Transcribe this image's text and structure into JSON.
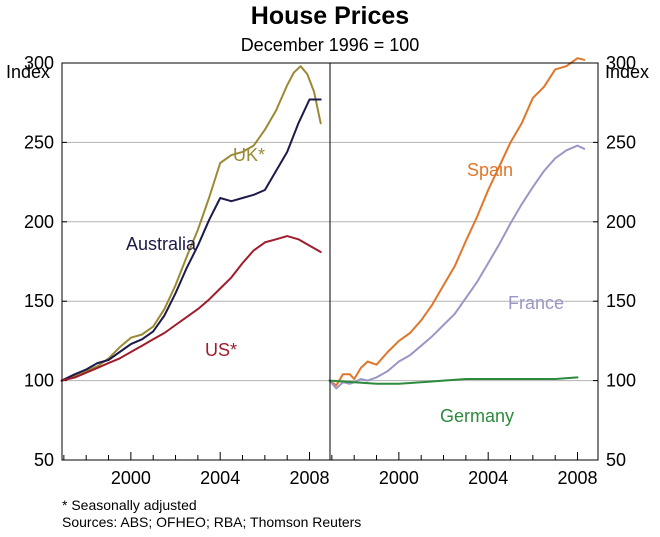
{
  "title": "House Prices",
  "subtitle": "December 1996 = 100",
  "y_unit_left": "Index",
  "y_unit_right": "Index",
  "footnote": "*  Seasonally adjusted",
  "sources": "Sources: ABS; OFHEO; RBA; Thomson Reuters",
  "chart_data": [
    {
      "type": "line",
      "panel": "left",
      "ylim": [
        50,
        300
      ],
      "yticks": [
        50,
        100,
        150,
        200,
        250,
        300
      ],
      "xlim": [
        1996.917,
        2008.917
      ],
      "xticks": [
        2000,
        2004,
        2008
      ],
      "ylabel": "Index",
      "series": [
        {
          "name": "UK*",
          "color": "#9a8a34",
          "x": [
            1996.9,
            1997.5,
            1998,
            1998.5,
            1999,
            1999.5,
            2000,
            2000.5,
            2001,
            2001.5,
            2002,
            2002.5,
            2003,
            2003.5,
            2004,
            2004.5,
            2005,
            2005.5,
            2006,
            2006.5,
            2007,
            2007.3,
            2007.6,
            2007.9,
            2008.2,
            2008.5
          ],
          "y": [
            100,
            103,
            106,
            109,
            114,
            121,
            127,
            129,
            134,
            145,
            160,
            178,
            195,
            215,
            237,
            242,
            244,
            248,
            258,
            270,
            286,
            294,
            298,
            293,
            282,
            262
          ]
        },
        {
          "name": "Australia",
          "color": "#1c1a4a",
          "x": [
            1996.9,
            1997.5,
            1998,
            1998.5,
            1999,
            1999.5,
            2000,
            2000.5,
            2001,
            2001.5,
            2002,
            2002.5,
            2003,
            2003.5,
            2004,
            2004.5,
            2005,
            2005.5,
            2006,
            2006.5,
            2007,
            2007.5,
            2008,
            2008.5
          ],
          "y": [
            100,
            104,
            107,
            111,
            113,
            118,
            123,
            126,
            131,
            141,
            155,
            171,
            185,
            201,
            215,
            213,
            215,
            217,
            220,
            232,
            244,
            262,
            277,
            277
          ]
        },
        {
          "name": "US*",
          "color": "#a01c2c",
          "x": [
            1996.9,
            1997.5,
            1998,
            1998.5,
            1999,
            1999.5,
            2000,
            2000.5,
            2001,
            2001.5,
            2002,
            2002.5,
            2003,
            2003.5,
            2004,
            2004.5,
            2005,
            2005.5,
            2006,
            2006.5,
            2007,
            2007.5,
            2008,
            2008.5
          ],
          "y": [
            100,
            102,
            105,
            108,
            111,
            114,
            118,
            122,
            126,
            130,
            135,
            140,
            145,
            151,
            158,
            165,
            174,
            182,
            187,
            189,
            191,
            189,
            185,
            181
          ]
        }
      ]
    },
    {
      "type": "line",
      "panel": "right",
      "ylim": [
        50,
        300
      ],
      "yticks": [
        50,
        100,
        150,
        200,
        250,
        300
      ],
      "xlim": [
        1996.917,
        2008.917
      ],
      "xticks": [
        2000,
        2004,
        2008
      ],
      "ylabel": "Index",
      "series": [
        {
          "name": "Spain",
          "color": "#e0762a",
          "x": [
            1996.9,
            1997.2,
            1997.5,
            1997.8,
            1998,
            1998.3,
            1998.6,
            1999,
            1999.5,
            2000,
            2000.5,
            2001,
            2001.5,
            2002,
            2002.5,
            2003,
            2003.5,
            2004,
            2004.5,
            2005,
            2005.5,
            2006,
            2006.5,
            2007,
            2007.5,
            2008,
            2008.3
          ],
          "y": [
            100,
            97,
            104,
            104,
            101,
            108,
            112,
            110,
            118,
            125,
            130,
            138,
            148,
            160,
            172,
            188,
            203,
            220,
            235,
            250,
            262,
            278,
            285,
            296,
            298,
            303,
            302
          ]
        },
        {
          "name": "France",
          "color": "#9a97c6",
          "x": [
            1996.9,
            1997.2,
            1997.5,
            1997.8,
            1998,
            1998.3,
            1998.6,
            1999,
            1999.5,
            2000,
            2000.5,
            2001,
            2001.5,
            2002,
            2002.5,
            2003,
            2003.5,
            2004,
            2004.5,
            2005,
            2005.5,
            2006,
            2006.5,
            2007,
            2007.5,
            2008,
            2008.3
          ],
          "y": [
            100,
            95,
            99,
            98,
            99,
            101,
            100,
            102,
            106,
            112,
            116,
            122,
            128,
            135,
            142,
            152,
            162,
            174,
            186,
            199,
            211,
            222,
            232,
            240,
            245,
            248,
            246
          ]
        },
        {
          "name": "Germany",
          "color": "#2b8a3c",
          "x": [
            1996.9,
            1998,
            1999,
            2000,
            2001,
            2002,
            2003,
            2004,
            2005,
            2006,
            2007,
            2008
          ],
          "y": [
            100,
            99,
            98,
            98,
            99,
            100,
            101,
            101,
            101,
            101,
            101,
            102
          ]
        }
      ]
    }
  ]
}
